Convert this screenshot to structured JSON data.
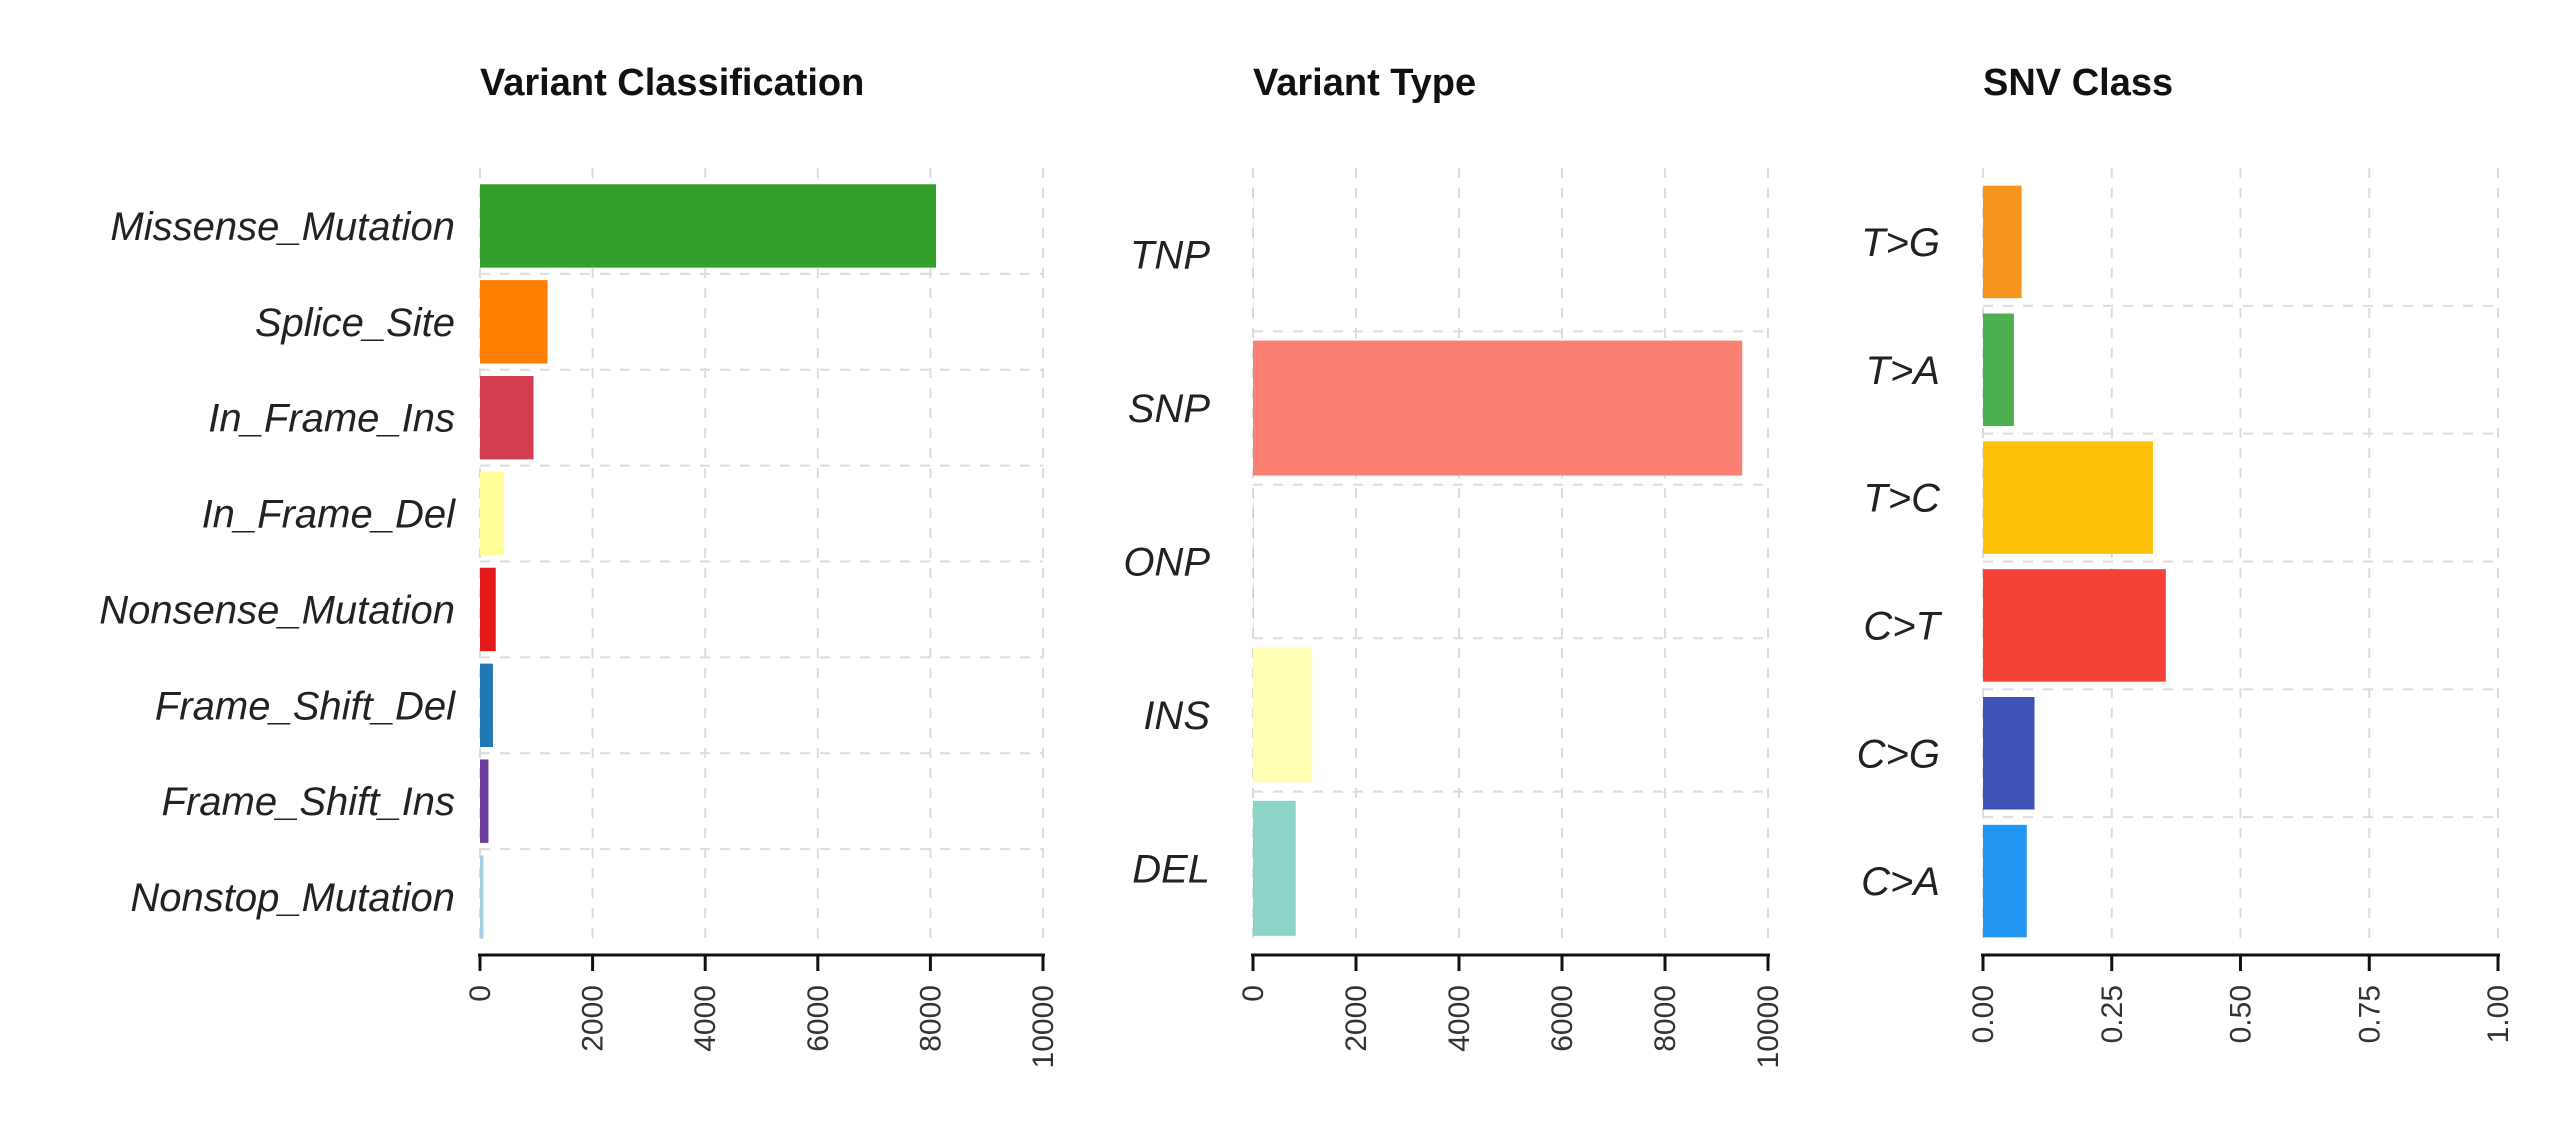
{
  "chart_data": [
    {
      "type": "bar",
      "orientation": "horizontal",
      "title": "Variant Classification",
      "categories": [
        "Missense_Mutation",
        "Splice_Site",
        "In_Frame_Ins",
        "In_Frame_Del",
        "Nonsense_Mutation",
        "Frame_Shift_Del",
        "Frame_Shift_Ins",
        "Nonstop_Mutation"
      ],
      "values": [
        8100,
        1200,
        950,
        420,
        280,
        230,
        150,
        60
      ],
      "colors": [
        "#33a02c",
        "#ff7f00",
        "#d33d50",
        "#ffff99",
        "#e31a1c",
        "#1f78b4",
        "#6a3d9a",
        "#a6cee3"
      ],
      "xlim": [
        0,
        10000
      ],
      "ticks": [
        "0",
        "2000",
        "4000",
        "6000",
        "8000",
        "10000"
      ],
      "grid": true
    },
    {
      "type": "bar",
      "orientation": "horizontal",
      "title": "Variant Type",
      "categories": [
        "TNP",
        "SNP",
        "ONP",
        "INS",
        "DEL"
      ],
      "values": [
        5,
        9500,
        5,
        1150,
        830
      ],
      "colors": [
        "#bebada",
        "#fb8072",
        "#80b1d3",
        "#ffffb3",
        "#8dd3c7"
      ],
      "xlim": [
        0,
        10000
      ],
      "ticks": [
        "0",
        "2000",
        "4000",
        "6000",
        "8000",
        "10000"
      ],
      "grid": true
    },
    {
      "type": "bar",
      "orientation": "horizontal",
      "title": "SNV Class",
      "categories": [
        "T>G",
        "T>A",
        "T>C",
        "C>T",
        "C>G",
        "C>A"
      ],
      "values": [
        0.075,
        0.06,
        0.33,
        0.355,
        0.1,
        0.085
      ],
      "colors": [
        "#f7941d",
        "#4caf50",
        "#ffc107",
        "#f44336",
        "#3f51b5",
        "#2196f3"
      ],
      "xlim": [
        0,
        1
      ],
      "ticks": [
        "0.00",
        "0.25",
        "0.50",
        "0.75",
        "1.00"
      ],
      "grid": true
    }
  ]
}
